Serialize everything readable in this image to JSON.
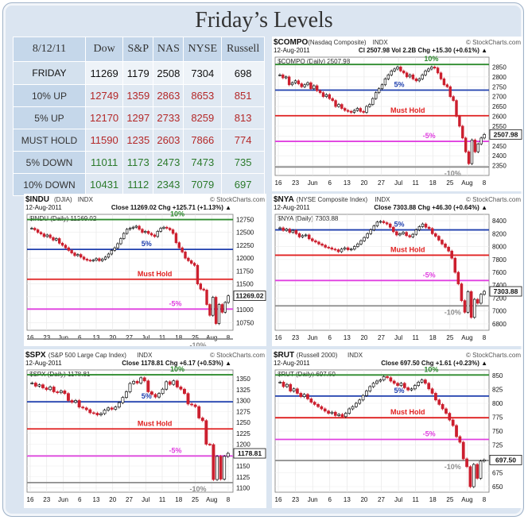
{
  "page": {
    "title": "Friday’s Levels"
  },
  "table": {
    "date": "8/12/11",
    "columns": [
      "Dow",
      "S&P",
      "NAS",
      "NYSE",
      "Russell"
    ],
    "rows": [
      {
        "label": "FRIDAY",
        "values": [
          "11269",
          "1179",
          "2508",
          "7304",
          "698"
        ],
        "kind": "friday"
      },
      {
        "label": "10% UP",
        "values": [
          "12749",
          "1359",
          "2863",
          "8653",
          "851"
        ],
        "kind": "red"
      },
      {
        "label": "5% UP",
        "values": [
          "12170",
          "1297",
          "2733",
          "8259",
          "813"
        ],
        "kind": "red"
      },
      {
        "label": "MUST HOLD",
        "values": [
          "11590",
          "1235",
          "2603",
          "7866",
          "774"
        ],
        "kind": "red"
      },
      {
        "label": "5% DOWN",
        "values": [
          "11011",
          "1173",
          "2473",
          "7473",
          "735"
        ],
        "kind": "green"
      },
      {
        "label": "10% DOWN",
        "values": [
          "10431",
          "1112",
          "2343",
          "7079",
          "697"
        ],
        "kind": "green"
      }
    ]
  },
  "colors": {
    "ten_up": "#2e8b2e",
    "five_up": "#1f3fae",
    "must_hold": "#e02020",
    "five_down": "#e040e0",
    "ten_down": "#8c8c8c",
    "candle_red": "#cc1f2e",
    "candle_black": "#111111"
  },
  "watermark": "© StockCharts.com",
  "chart_data": [
    {
      "id": "compo",
      "type": "line",
      "symbol": "$COMPO",
      "name": "(Nasdaq Composite)",
      "indx": "INDX",
      "date": "12-Aug-2011",
      "stats": "Cl 2507.98  Vol 2.2B  Chg +15.30 (+0.61%) ▲",
      "legend": "$COMPO (Daily) 2507.98",
      "ylim": [
        2300,
        2900
      ],
      "yticks": [
        2350,
        2400,
        2450,
        2500,
        2550,
        2600,
        2650,
        2700,
        2750,
        2800,
        2850
      ],
      "last": "2507.98",
      "x_labels": [
        "16",
        "23",
        "Jun",
        "6",
        "13",
        "20",
        "27",
        "Jul",
        "11",
        "18",
        "25",
        "Aug",
        "8"
      ],
      "levels": [
        {
          "label": "10%",
          "value": 2863,
          "key": "ten_up"
        },
        {
          "label": "5%",
          "value": 2733,
          "key": "five_up"
        },
        {
          "label": "Must Hold",
          "value": 2603,
          "key": "must_hold"
        },
        {
          "label": "-5%",
          "value": 2473,
          "key": "five_down"
        },
        {
          "label": "-10%",
          "value": 2343,
          "key": "ten_down"
        }
      ],
      "closes": [
        2810,
        2795,
        2800,
        2760,
        2770,
        2780,
        2765,
        2750,
        2760,
        2770,
        2740,
        2755,
        2730,
        2720,
        2700,
        2710,
        2690,
        2680,
        2650,
        2660,
        2640,
        2630,
        2625,
        2620,
        2630,
        2640,
        2625,
        2620,
        2650,
        2660,
        2690,
        2720,
        2740,
        2760,
        2790,
        2810,
        2830,
        2840,
        2850,
        2830,
        2820,
        2800,
        2810,
        2790,
        2780,
        2790,
        2810,
        2830,
        2840,
        2850,
        2845,
        2820,
        2790,
        2760,
        2750,
        2700,
        2680,
        2600,
        2550,
        2490,
        2420,
        2360,
        2480,
        2420,
        2460,
        2490,
        2508
      ]
    },
    {
      "id": "indu",
      "type": "line",
      "symbol": "$INDU",
      "name": "(DJIA)",
      "indx": "INDX",
      "date": "12-Aug-2011",
      "stats": "Close 11269.02  Chg +125.71 (+1.13%) ▲",
      "legend": "$INDU (Daily) 11269.02",
      "ylim": [
        10600,
        12850
      ],
      "yticks": [
        10750,
        11000,
        11250,
        11500,
        11750,
        12000,
        12250,
        12500,
        12750
      ],
      "last": "11269.02",
      "x_labels": [
        "16",
        "23",
        "Jun",
        "6",
        "13",
        "20",
        "27",
        "Jul",
        "11",
        "18",
        "25",
        "Aug",
        "8"
      ],
      "levels": [
        {
          "label": "10%",
          "value": 12749,
          "key": "ten_up"
        },
        {
          "label": "5%",
          "value": 12170,
          "key": "five_up"
        },
        {
          "label": "Must Hold",
          "value": 11590,
          "key": "must_hold"
        },
        {
          "label": "-5%",
          "value": 11011,
          "key": "five_down"
        },
        {
          "label": "-10%",
          "value": 10431,
          "key": "ten_down"
        }
      ],
      "closes": [
        12580,
        12550,
        12500,
        12470,
        12420,
        12450,
        12400,
        12350,
        12380,
        12290,
        12250,
        12200,
        12150,
        12100,
        12050,
        12070,
        12020,
        11980,
        11960,
        11950,
        11960,
        11990,
        11950,
        11980,
        12020,
        12080,
        12150,
        12200,
        12280,
        12380,
        12480,
        12560,
        12580,
        12600,
        12620,
        12560,
        12500,
        12520,
        12480,
        12450,
        12420,
        12520,
        12580,
        12600,
        12580,
        12550,
        12480,
        12300,
        12200,
        12120,
        12000,
        11950,
        11900,
        11860,
        11500,
        11400,
        11380,
        11100,
        10890,
        11240,
        10730,
        11100,
        10950,
        11140,
        11269
      ]
    },
    {
      "id": "nya",
      "type": "line",
      "symbol": "$NYA",
      "name": "(NYSE Composite Index)",
      "indx": "INDX",
      "date": "12-Aug-2011",
      "stats": "Close 7303.88  Chg +46.30 (+0.64%) ▲",
      "legend": "$NYA (Daily) 7303.88",
      "ylim": [
        6700,
        8500
      ],
      "yticks": [
        6800,
        7000,
        7200,
        7400,
        7600,
        7800,
        8000,
        8200,
        8400
      ],
      "last": "7303.88",
      "x_labels": [
        "16",
        "23",
        "Jun",
        "6",
        "13",
        "20",
        "27",
        "Jul",
        "11",
        "18",
        "25",
        "Aug",
        "8"
      ],
      "levels": [
        {
          "label": "5%",
          "value": 8259,
          "key": "five_up"
        },
        {
          "label": "Must Hold",
          "value": 7866,
          "key": "must_hold"
        },
        {
          "label": "-5%",
          "value": 7473,
          "key": "five_down"
        },
        {
          "label": "-10%",
          "value": 7079,
          "key": "ten_down"
        }
      ],
      "closes": [
        8290,
        8250,
        8270,
        8220,
        8250,
        8200,
        8150,
        8170,
        8180,
        8120,
        8090,
        8070,
        8040,
        8020,
        7990,
        7980,
        7960,
        7950,
        7920,
        7960,
        7980,
        7950,
        7960,
        8000,
        8040,
        8090,
        8140,
        8200,
        8260,
        8320,
        8380,
        8390,
        8370,
        8350,
        8300,
        8230,
        8180,
        8200,
        8220,
        8170,
        8150,
        8190,
        8260,
        8310,
        8350,
        8300,
        8280,
        8200,
        8160,
        8100,
        8040,
        7990,
        7930,
        7820,
        7600,
        7420,
        7160,
        6980,
        7300,
        6900,
        7180,
        7120,
        7258,
        7304
      ]
    },
    {
      "id": "spx",
      "type": "line",
      "symbol": "$SPX",
      "name": "(S&P 500 Large Cap Index)",
      "indx": "INDX",
      "date": "12-Aug-2011",
      "stats": "Close 1178.81  Chg +6.17 (+0.53%) ▲",
      "legend": "$SPX (Daily) 1178.81",
      "ylim": [
        1090,
        1370
      ],
      "yticks": [
        1100,
        1125,
        1150,
        1175,
        1200,
        1225,
        1250,
        1275,
        1300,
        1325,
        1350
      ],
      "last": "1178.81",
      "x_labels": [
        "16",
        "23",
        "Jun",
        "6",
        "13",
        "20",
        "27",
        "Jul",
        "11",
        "18",
        "25",
        "Aug",
        "8"
      ],
      "levels": [
        {
          "label": "10%",
          "value": 1359,
          "key": "ten_up"
        },
        {
          "label": "5%",
          "value": 1297,
          "key": "five_up"
        },
        {
          "label": "Must Hold",
          "value": 1235,
          "key": "must_hold"
        },
        {
          "label": "-5%",
          "value": 1173,
          "key": "five_down"
        },
        {
          "label": "-10%",
          "value": 1112,
          "key": "ten_down"
        }
      ],
      "closes": [
        1340,
        1333,
        1336,
        1329,
        1325,
        1331,
        1320,
        1318,
        1322,
        1316,
        1300,
        1296,
        1300,
        1285,
        1283,
        1279,
        1272,
        1271,
        1267,
        1270,
        1278,
        1283,
        1280,
        1285,
        1295,
        1307,
        1320,
        1339,
        1344,
        1340,
        1352,
        1345,
        1320,
        1314,
        1308,
        1316,
        1326,
        1343,
        1337,
        1345,
        1331,
        1326,
        1316,
        1292,
        1290,
        1286,
        1260,
        1254,
        1200,
        1199,
        1119,
        1172,
        1120,
        1172,
        1179
      ]
    },
    {
      "id": "rut",
      "type": "line",
      "symbol": "$RUT",
      "name": "(Russell 2000)",
      "indx": "INDX",
      "date": "12-Aug-2011",
      "stats": "Close 697.50  Chg +1.61 (+0.23%) ▲",
      "legend": "$RUT (Daily) 697.50",
      "ylim": [
        640,
        860
      ],
      "yticks": [
        650,
        675,
        700,
        725,
        750,
        775,
        800,
        825,
        850
      ],
      "last": "697.50",
      "x_labels": [
        "16",
        "23",
        "Jun",
        "6",
        "13",
        "20",
        "27",
        "Jul",
        "11",
        "18",
        "25",
        "Aug",
        "8"
      ],
      "levels": [
        {
          "label": "10%",
          "value": 851,
          "key": "ten_up"
        },
        {
          "label": "5%",
          "value": 813,
          "key": "five_up"
        },
        {
          "label": "Must Hold",
          "value": 774,
          "key": "must_hold"
        },
        {
          "label": "-5%",
          "value": 735,
          "key": "five_down"
        },
        {
          "label": "-10%",
          "value": 697,
          "key": "ten_down"
        }
      ],
      "closes": [
        838,
        830,
        834,
        822,
        826,
        818,
        812,
        816,
        808,
        802,
        798,
        794,
        790,
        786,
        782,
        784,
        778,
        780,
        776,
        782,
        790,
        794,
        800,
        806,
        814,
        822,
        830,
        836,
        840,
        842,
        848,
        846,
        840,
        836,
        832,
        836,
        828,
        824,
        826,
        832,
        838,
        842,
        836,
        826,
        818,
        806,
        798,
        790,
        782,
        770,
        760,
        740,
        730,
        700,
        686,
        650,
        690,
        665,
        696,
        698
      ]
    }
  ]
}
